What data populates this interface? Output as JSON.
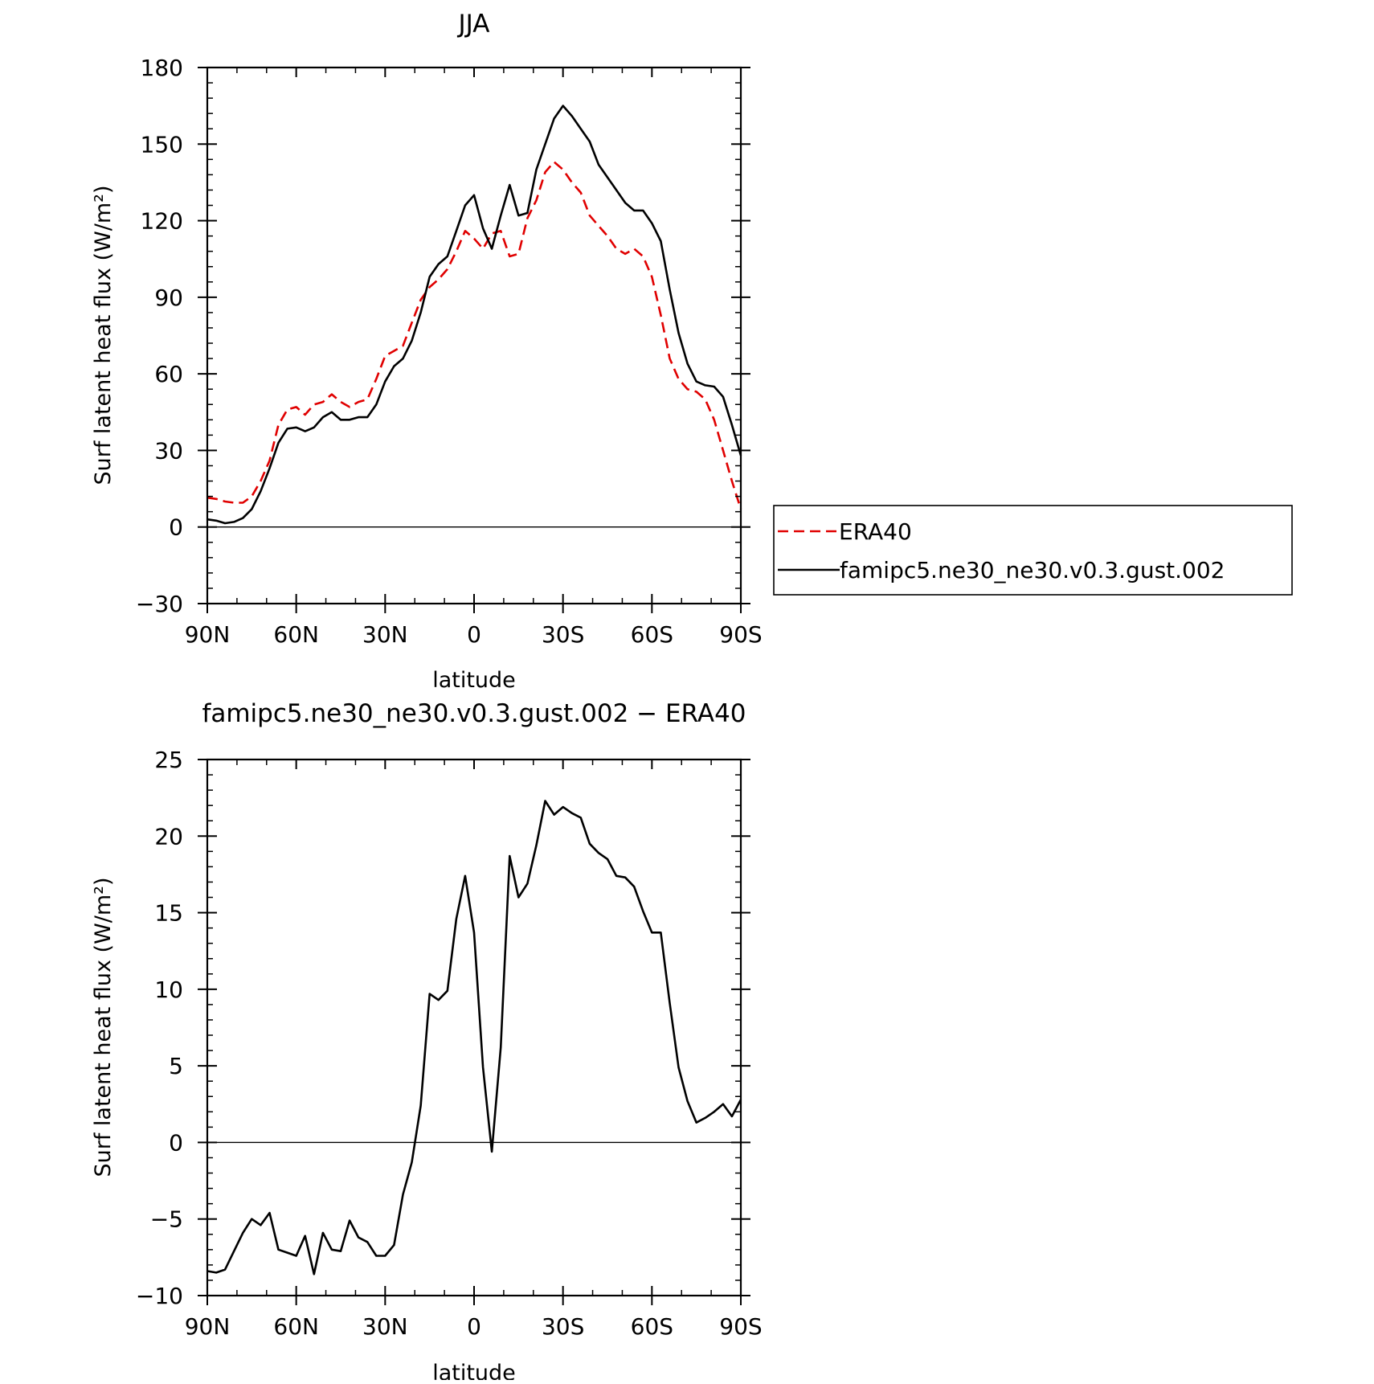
{
  "charts": [
    {
      "title": "JJA",
      "xlabel": "latitude",
      "ylabel": "Surf latent heat flux (W/m²)",
      "xticks": [
        "90N",
        "60N",
        "30N",
        "0",
        "30S",
        "60S",
        "90S"
      ],
      "yticks": [
        "180",
        "150",
        "120",
        "90",
        "60",
        "30",
        "0",
        "−30"
      ],
      "legend": {
        "items": [
          "ERA40",
          "famipc5.ne30_ne30.v0.3.gust.002"
        ]
      }
    },
    {
      "title": "famipc5.ne30_ne30.v0.3.gust.002 − ERA40",
      "xlabel": "latitude",
      "ylabel": "Surf latent heat flux (W/m²)",
      "xticks": [
        "90N",
        "60N",
        "30N",
        "0",
        "30S",
        "60S",
        "90S"
      ],
      "yticks": [
        "25",
        "20",
        "15",
        "10",
        "5",
        "0",
        "−5",
        "−10"
      ]
    }
  ],
  "chart_data": [
    {
      "type": "line",
      "title": "JJA",
      "xlabel": "latitude",
      "ylabel": "Surf latent heat flux (W/m²)",
      "xlim": [
        90,
        -90
      ],
      "ylim": [
        -30,
        180
      ],
      "x_ticks": [
        90,
        60,
        30,
        0,
        -30,
        -60,
        -90
      ],
      "y_ticks": [
        180,
        150,
        120,
        90,
        60,
        30,
        0,
        -30
      ],
      "legend_position": "right",
      "series": [
        {
          "name": "ERA40",
          "color": "#e00000",
          "dash": "dashed",
          "x": [
            90,
            87,
            84,
            81,
            78,
            75,
            72,
            69,
            66,
            63,
            60,
            57,
            54,
            51,
            48,
            45,
            42,
            39,
            36,
            33,
            30,
            27,
            24,
            21,
            18,
            15,
            12,
            9,
            6,
            3,
            0,
            -3,
            -6,
            -9,
            -12,
            -15,
            -18,
            -21,
            -24,
            -27,
            -30,
            -33,
            -36,
            -39,
            -42,
            -45,
            -48,
            -51,
            -54,
            -57,
            -60,
            -63,
            -66,
            -69,
            -72,
            -75,
            -78,
            -81,
            -84,
            -87,
            -90
          ],
          "y": [
            11.5,
            11,
            10,
            9.5,
            9.5,
            12,
            18,
            26,
            40,
            46,
            47,
            44,
            48,
            49,
            52,
            49,
            47,
            49,
            50,
            58,
            67,
            69,
            71,
            80,
            89,
            94,
            97,
            101,
            108,
            116,
            113,
            109,
            115,
            116,
            106,
            107,
            121,
            128,
            139,
            143,
            140,
            135,
            131,
            122,
            118,
            114,
            109,
            107,
            109,
            106,
            98,
            83,
            66,
            58,
            54,
            53,
            50,
            42,
            30,
            18,
            7
          ]
        },
        {
          "name": "famipc5.ne30_ne30.v0.3.gust.002",
          "color": "#000000",
          "dash": "solid",
          "x": [
            90,
            87,
            84,
            81,
            78,
            75,
            72,
            69,
            66,
            63,
            60,
            57,
            54,
            51,
            48,
            45,
            42,
            39,
            36,
            33,
            30,
            27,
            24,
            21,
            18,
            15,
            12,
            9,
            6,
            3,
            0,
            -3,
            -6,
            -9,
            -12,
            -15,
            -18,
            -21,
            -24,
            -27,
            -30,
            -33,
            -36,
            -39,
            -42,
            -45,
            -48,
            -51,
            -54,
            -57,
            -60,
            -63,
            -66,
            -69,
            -72,
            -75,
            -78,
            -81,
            -84,
            -87,
            -90
          ],
          "y": [
            3,
            2.5,
            1.5,
            2,
            3.5,
            7,
            14,
            23,
            33,
            38.5,
            39,
            37.5,
            39,
            43,
            45,
            42,
            42,
            43,
            43,
            48,
            57,
            63,
            66,
            73,
            84,
            98,
            103,
            106,
            116,
            126,
            130,
            117,
            109,
            122,
            134,
            122,
            123,
            140,
            150,
            160,
            165,
            161,
            156,
            151,
            142,
            137,
            132,
            127,
            124,
            124,
            119,
            112,
            93,
            76,
            64,
            57,
            55.5,
            55,
            51,
            40,
            28
          ]
        }
      ]
    },
    {
      "type": "line",
      "title": "famipc5.ne30_ne30.v0.3.gust.002 − ERA40",
      "xlabel": "latitude",
      "ylabel": "Surf latent heat flux (W/m²)",
      "xlim": [
        90,
        -90
      ],
      "ylim": [
        -10,
        25
      ],
      "x_ticks": [
        90,
        60,
        30,
        0,
        -30,
        -60,
        -90
      ],
      "y_ticks": [
        25,
        20,
        15,
        10,
        5,
        0,
        -5,
        -10
      ],
      "series": [
        {
          "color": "#000000",
          "x": [
            90,
            87,
            84,
            81,
            78,
            75,
            72,
            69,
            66,
            63,
            60,
            57,
            54,
            51,
            48,
            45,
            42,
            39,
            36,
            33,
            30,
            27,
            24,
            21,
            18,
            15,
            12,
            9,
            6,
            3,
            0,
            -3,
            -6,
            -9,
            -12,
            -15,
            -18,
            -21,
            -24,
            -27,
            -30,
            -33,
            -36,
            -39,
            -42,
            -45,
            -48,
            -51,
            -54,
            -57,
            -60,
            -63,
            -66,
            -69,
            -72,
            -75,
            -78,
            -81,
            -84,
            -87,
            -90
          ],
          "y": [
            -8.4,
            -8.5,
            -8.3,
            -7.1,
            -5.9,
            -5,
            -5.4,
            -4.6,
            -7,
            -7.2,
            -7.4,
            -6.1,
            -8.6,
            -5.9,
            -7,
            -7.1,
            -5.1,
            -6.2,
            -6.5,
            -7.4,
            -7.4,
            -6.7,
            -3.4,
            -1.3,
            2.4,
            9.7,
            9.3,
            9.9,
            14.6,
            17.4,
            13.7,
            4.9,
            -0.6,
            6.2,
            18.7,
            16,
            16.9,
            19.4,
            22.3,
            21.4,
            21.9,
            21.5,
            21.2,
            19.5,
            18.9,
            18.5,
            17.4,
            17.3,
            16.7,
            15.1,
            13.7,
            13.7,
            9.1,
            4.9,
            2.7,
            1.3,
            1.6,
            2,
            2.5,
            1.7,
            2.8
          ]
        }
      ]
    }
  ]
}
